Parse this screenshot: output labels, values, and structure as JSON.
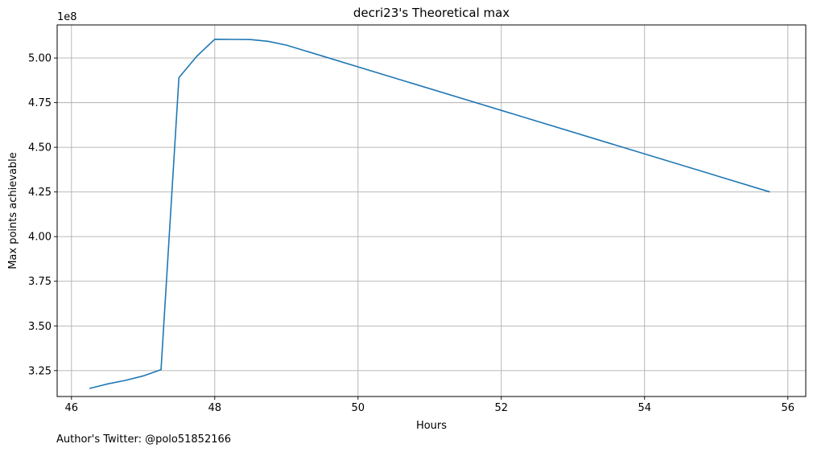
{
  "chart_data": {
    "type": "line",
    "title": "decri23's Theoretical max",
    "xlabel": "Hours",
    "ylabel": "Max points achievable",
    "y_offset_label": "1e8",
    "xlim": [
      45.8,
      56.25
    ],
    "ylim": [
      3.105,
      5.185
    ],
    "x_ticks": [
      46,
      48,
      50,
      52,
      54,
      56
    ],
    "x_tick_labels": [
      "46",
      "48",
      "50",
      "52",
      "54",
      "56"
    ],
    "y_ticks": [
      3.25,
      3.5,
      3.75,
      4.0,
      4.25,
      4.5,
      4.75,
      5.0
    ],
    "y_tick_labels": [
      "3.25",
      "3.50",
      "3.75",
      "4.00",
      "4.25",
      "4.50",
      "4.75",
      "5.00"
    ],
    "grid": true,
    "line_color": "#1f77b4",
    "series": [
      {
        "x": [
          46.25,
          46.5,
          46.75,
          47.0,
          47.25,
          47.5,
          47.75,
          48.0,
          48.25,
          48.5,
          48.75,
          49.0,
          55.75
        ],
        "y": [
          3.15,
          3.175,
          3.195,
          3.22,
          3.255,
          4.89,
          5.01,
          5.105,
          5.104,
          5.103,
          5.093,
          5.072,
          4.25
        ]
      }
    ],
    "footer": "Author's Twitter: @polo51852166"
  }
}
